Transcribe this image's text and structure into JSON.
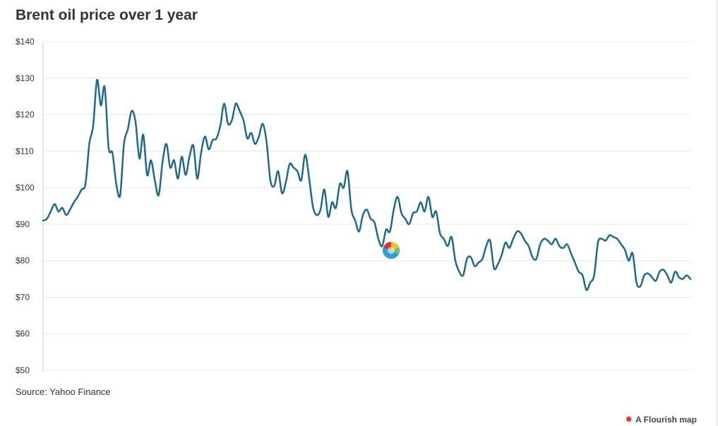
{
  "title": "Brent oil price over 1 year",
  "source": "Source: Yahoo Finance",
  "branding": "A Flourish map",
  "colors": {
    "line": "#1d6a8e",
    "grid": "#e8e8e8",
    "text": "#333333",
    "brand": "#e0342a"
  },
  "chart_data": {
    "type": "line",
    "title": "Brent oil price over 1 year",
    "xlabel": "",
    "ylabel": "",
    "ylim": [
      50,
      140
    ],
    "yticks": [
      "$140",
      "$130",
      "$120",
      "$110",
      "$100",
      "$90",
      "$80",
      "$70",
      "$60",
      "$50"
    ],
    "ytick_values": [
      140,
      130,
      120,
      110,
      100,
      90,
      80,
      70,
      60,
      50
    ],
    "grid": true,
    "legend": "none",
    "x_axis_labels": "none",
    "series": [
      {
        "values": [
          91,
          91.5,
          93.5,
          95.5,
          93.5,
          94.5,
          92.5,
          94,
          96,
          97.5,
          99.5,
          101,
          112,
          117,
          129.5,
          122.5,
          127.5,
          111,
          109.5,
          101,
          98,
          112,
          116,
          121,
          118,
          108,
          114.5,
          103.5,
          107.5,
          102,
          98,
          107,
          112,
          105.5,
          107.5,
          102.5,
          108.5,
          103.5,
          108.5,
          111.5,
          102.5,
          109.5,
          114,
          110.5,
          113,
          113.5,
          117,
          123,
          117.5,
          118.5,
          123,
          121,
          118.5,
          113.5,
          115,
          112,
          114,
          117.5,
          112.5,
          102,
          100.5,
          104.5,
          98.5,
          101.5,
          106.5,
          105.5,
          104.5,
          102,
          109,
          103,
          95,
          92.5,
          94,
          99.5,
          92,
          96,
          94.5,
          101,
          100,
          104.5,
          94,
          91,
          88,
          92.5,
          94,
          91.5,
          90.5,
          86,
          84,
          88.5,
          88,
          94,
          97.5,
          93,
          91.5,
          90,
          93,
          93.5,
          96,
          93.5,
          97.5,
          92,
          93.5,
          87.5,
          86,
          84,
          86.5,
          80,
          77,
          76,
          80.5,
          81,
          78.5,
          79.5,
          80.5,
          84,
          85.5,
          78,
          79,
          81.5,
          85,
          83.5,
          86,
          88,
          87.5,
          85.5,
          84,
          81,
          80.5,
          84.5,
          86,
          85.5,
          84.5,
          86,
          84,
          83.5,
          84.5,
          82,
          79.5,
          77,
          76,
          72,
          74,
          76,
          85,
          86,
          85.5,
          87,
          86.5,
          86,
          84.5,
          83,
          80,
          82,
          74,
          73,
          76,
          76.5,
          75.5,
          74.5,
          77,
          77.5,
          76,
          74,
          77,
          75.5,
          75,
          76,
          75
        ]
      }
    ]
  }
}
